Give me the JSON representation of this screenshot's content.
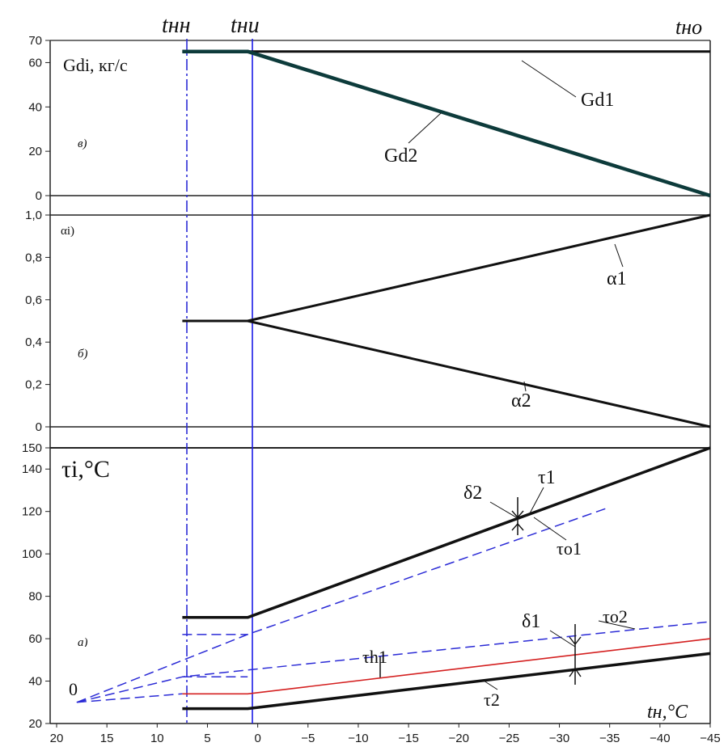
{
  "colors": {
    "primary": "#111111",
    "dashed_blue": "#2b2bd6",
    "red": "#d42020",
    "vline_blue": "#1a1ae6"
  },
  "top_labels": {
    "t_nn": "tнн",
    "t_ni": "tни",
    "t_no": "tно"
  },
  "x_axis": {
    "label": "tн,°C",
    "ticks": [
      "20",
      "15",
      "10",
      "5",
      "0",
      "−5",
      "−10",
      "−15",
      "−20",
      "−25",
      "−30",
      "−35",
      "−40",
      "−45"
    ],
    "range": [
      20,
      -45
    ]
  },
  "chart_data": [
    {
      "panel": "в)",
      "type": "line",
      "ylabel": "Gdi, кг/с",
      "ylim": [
        0,
        70
      ],
      "yticks": [
        "0",
        "20",
        "40",
        "60",
        "70"
      ],
      "series": [
        {
          "name": "Gd1",
          "x": [
            7.5,
            -45
          ],
          "y": [
            65,
            65
          ]
        },
        {
          "name": "Gd2",
          "x": [
            7.5,
            1,
            -45
          ],
          "y": [
            65,
            65,
            0
          ]
        }
      ]
    },
    {
      "panel": "б)",
      "type": "line",
      "ylabel": "αi)",
      "ylim": [
        0,
        1.0
      ],
      "yticks": [
        "0",
        "0,2",
        "0,4",
        "0,6",
        "0,8",
        "1,0"
      ],
      "series": [
        {
          "name": "α1",
          "x": [
            7.5,
            1,
            -45
          ],
          "y": [
            0.5,
            0.5,
            1.0
          ]
        },
        {
          "name": "α2",
          "x": [
            1,
            -45
          ],
          "y": [
            0.5,
            0.0
          ]
        }
      ]
    },
    {
      "panel": "а)",
      "type": "line",
      "ylabel": "τi,°C",
      "ylim": [
        20,
        150
      ],
      "yticks": [
        "20",
        "40",
        "60",
        "80",
        "100",
        "120",
        "140",
        "150"
      ],
      "annotations": [
        "δ2",
        "δ1",
        "0"
      ],
      "series": [
        {
          "name": "τ1",
          "x": [
            7.5,
            1,
            -45
          ],
          "y": [
            70,
            70,
            150
          ]
        },
        {
          "name": "τo1",
          "x": [
            18,
            1,
            -35
          ],
          "y": [
            30,
            62,
            122
          ]
        },
        {
          "name": "τo2",
          "x": [
            18,
            7.5,
            -45
          ],
          "y": [
            30,
            42,
            68
          ]
        },
        {
          "name": "τh1",
          "x": [
            7.5,
            1,
            -45
          ],
          "y": [
            34,
            34,
            60
          ]
        },
        {
          "name": "τ2",
          "x": [
            7.5,
            1,
            -45
          ],
          "y": [
            27,
            27,
            53
          ]
        }
      ]
    }
  ],
  "panel_labels": {
    "top": "в)",
    "mid": "б)",
    "bottom": "а)"
  },
  "y_labels": {
    "top": "Gdi, кг/с",
    "mid": "αi)",
    "bottom": "τi,°C"
  },
  "series_labels": {
    "gd1": "Gd1",
    "gd2": "Gd2",
    "a1": "α1",
    "a2": "α2",
    "tau1": "τ1",
    "tauo1": "τo1",
    "tauo2": "τo2",
    "tauh1": "τh1",
    "tau2": "τ2",
    "delta1": "δ1",
    "delta2": "δ2",
    "zero": "0"
  }
}
